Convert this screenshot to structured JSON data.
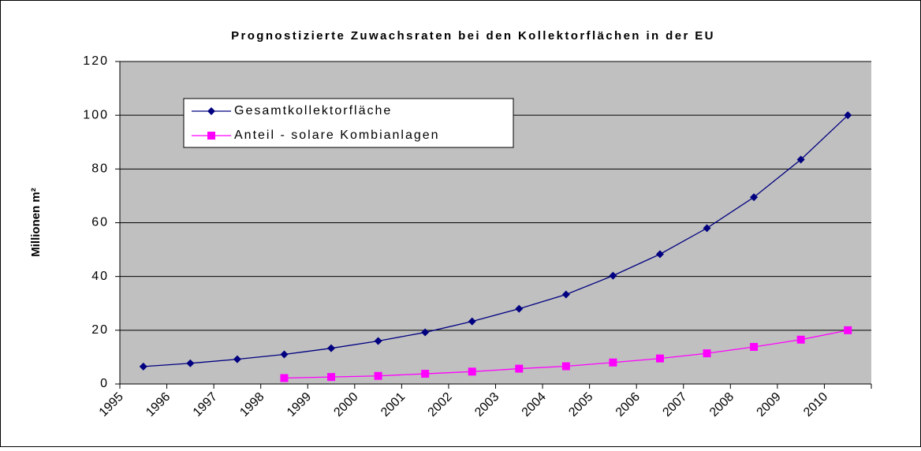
{
  "chart_data": {
    "type": "line",
    "title": "Prognostizierte Zuwachsraten bei den Kollektorflächen in der EU",
    "y_label": "Millionen m²",
    "categories": [
      "1995",
      "1996",
      "1997",
      "1998",
      "1999",
      "2000",
      "2001",
      "2002",
      "2003",
      "2004",
      "2005",
      "2006",
      "2007",
      "2008",
      "2009",
      "2010"
    ],
    "series": [
      {
        "name": "Gesamtkollektorfläche",
        "color": "#000080",
        "marker": "diamond",
        "values": [
          6.5,
          7.7,
          9.2,
          11,
          13.3,
          16,
          19.2,
          23.3,
          28,
          33.3,
          40.3,
          48.3,
          58,
          69.5,
          83.5,
          100
        ]
      },
      {
        "name": "Anteil - solare Kombianlagen",
        "color": "#ff00ff",
        "marker": "square",
        "values": [
          null,
          null,
          null,
          2.2,
          2.6,
          3,
          3.8,
          4.6,
          5.7,
          6.6,
          8,
          9.5,
          11.4,
          13.8,
          16.5,
          20
        ]
      }
    ],
    "ylim": [
      0,
      120
    ],
    "yticks": [
      0,
      20,
      40,
      60,
      80,
      100,
      120
    ],
    "grid": true,
    "legend": "upper left"
  }
}
